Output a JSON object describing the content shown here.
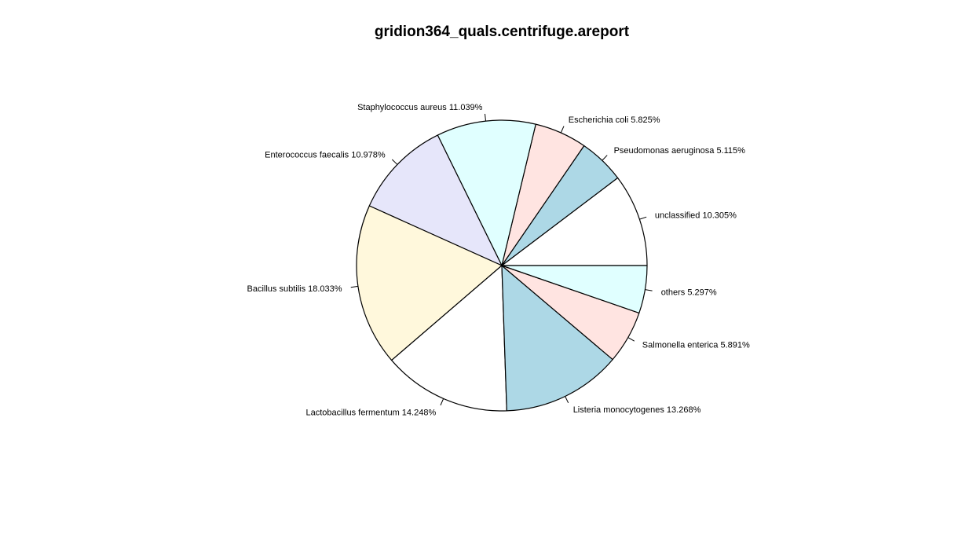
{
  "chart_data": {
    "type": "pie",
    "title": "gridion364_quals.centrifuge.areport",
    "direction": "counterclockwise",
    "start": "3 o'clock",
    "slices": [
      {
        "name": "unclassified",
        "value": 10.305,
        "label": "unclassified 10.305%",
        "color": "#FFFFFF"
      },
      {
        "name": "Pseudomonas aeruginosa",
        "value": 5.115,
        "label": "Pseudomonas aeruginosa 5.115%",
        "color": "#ADD8E6"
      },
      {
        "name": "Escherichia coli",
        "value": 5.825,
        "label": "Escherichia coli 5.825%",
        "color": "#FFE4E1"
      },
      {
        "name": "Staphylococcus aureus",
        "value": 11.039,
        "label": "Staphylococcus aureus 11.039%",
        "color": "#E0FFFF"
      },
      {
        "name": "Enterococcus faecalis",
        "value": 10.978,
        "label": "Enterococcus faecalis 10.978%",
        "color": "#E6E6FA"
      },
      {
        "name": "Bacillus subtilis",
        "value": 18.033,
        "label": "Bacillus subtilis 18.033%",
        "color": "#FFF8DC"
      },
      {
        "name": "Lactobacillus fermentum",
        "value": 14.248,
        "label": "Lactobacillus fermentum 14.248%",
        "color": "#FFFFFF"
      },
      {
        "name": "Listeria monocytogenes",
        "value": 13.268,
        "label": "Listeria monocytogenes 13.268%",
        "color": "#ADD8E6"
      },
      {
        "name": "Salmonella enterica",
        "value": 5.891,
        "label": "Salmonella enterica 5.891%",
        "color": "#FFE4E1"
      },
      {
        "name": "others",
        "value": 5.297,
        "label": "others 5.297%",
        "color": "#E0FFFF"
      }
    ]
  }
}
